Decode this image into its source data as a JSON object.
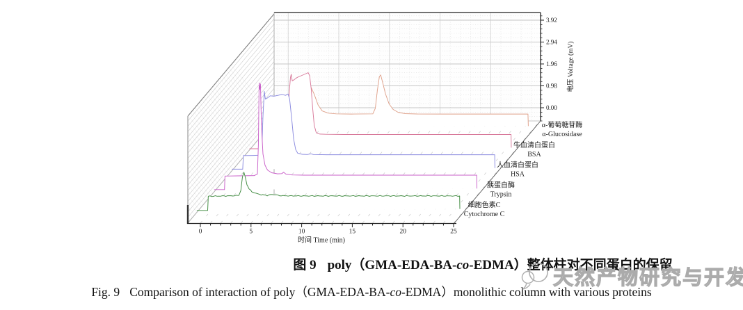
{
  "figure": {
    "caption_zh": {
      "prefix": "图 9",
      "seg1": "poly（GMA-EDA-BA-",
      "italic": "co",
      "seg2": "-EDMA）整体柱对不同蛋白的保留"
    },
    "caption_en": {
      "prefix": "Fig. 9",
      "seg1": "Comparison of interaction of poly（GMA-EDA-BA-",
      "italic": "co",
      "seg2": "-EDMA）monolithic column with various proteins"
    }
  },
  "watermark": {
    "text": "天然产物研究与开发"
  },
  "chart_data": {
    "type": "line",
    "subtype": "3d-waterfall-chromatograms",
    "title": "",
    "xlabel": "时间 Time (min)",
    "ylabel": "电压 Voltage (mV)",
    "xlim": [
      0,
      25
    ],
    "x_ticks": [
      0,
      5,
      10,
      15,
      20,
      25
    ],
    "x_minor_step": 1,
    "z_ticks": [
      "0.00",
      "0.98",
      "1.96",
      "2.94",
      "3.92"
    ],
    "grid": "dotted-minor-solid-major-on-back-wall",
    "legend_position": "right-diagonal-series-labels",
    "series": [
      {
        "name_zh": "α-葡萄糖苷酶",
        "name_en": "α-Glucosidase",
        "color": "#dfa089",
        "depth": 4,
        "main_peaks": [
          {
            "t_min": 3.75,
            "height_mV": 1.35
          },
          {
            "t_min": 10.9,
            "height_mV": 1.8
          }
        ],
        "points": [
          [
            -0.35,
            -0.55
          ],
          [
            0.7,
            -0.55
          ],
          [
            0.76,
            0.02
          ],
          [
            1.6,
            0.03
          ],
          [
            3.2,
            0.05
          ],
          [
            3.5,
            0.7
          ],
          [
            3.75,
            1.35
          ],
          [
            4.0,
            1.25
          ],
          [
            4.3,
            0.95
          ],
          [
            4.7,
            0.45
          ],
          [
            5.1,
            0.18
          ],
          [
            5.7,
            0.08
          ],
          [
            6.5,
            0.05
          ],
          [
            8.0,
            0.04
          ],
          [
            10.1,
            0.05
          ],
          [
            10.35,
            0.3
          ],
          [
            10.55,
            1.1
          ],
          [
            10.75,
            1.72
          ],
          [
            10.88,
            1.8
          ],
          [
            11.05,
            1.5
          ],
          [
            11.35,
            0.95
          ],
          [
            11.7,
            0.5
          ],
          [
            12.1,
            0.25
          ],
          [
            12.6,
            0.12
          ],
          [
            13.3,
            0.06
          ],
          [
            14.5,
            0.045
          ],
          [
            17.0,
            0.04
          ],
          [
            20.0,
            0.04
          ],
          [
            23.0,
            0.04
          ],
          [
            25.42,
            0.04
          ],
          [
            25.45,
            -0.5
          ]
        ]
      },
      {
        "name_zh": "牛血清白蛋白",
        "name_en": "BSA",
        "color": "#d8799a",
        "depth": 3,
        "main_peaks": [
          {
            "t_min": 5.45,
            "height_mV": 2.82
          }
        ],
        "points": [
          [
            -0.35,
            -0.6
          ],
          [
            0.68,
            -0.6
          ],
          [
            0.74,
            0.01
          ],
          [
            2.0,
            0.02
          ],
          [
            3.3,
            0.03
          ],
          [
            3.45,
            0.5
          ],
          [
            3.58,
            1.9
          ],
          [
            3.7,
            2.6
          ],
          [
            3.78,
            2.75
          ],
          [
            3.88,
            2.45
          ],
          [
            4.05,
            2.5
          ],
          [
            4.35,
            2.6
          ],
          [
            4.75,
            2.68
          ],
          [
            5.15,
            2.76
          ],
          [
            5.45,
            2.82
          ],
          [
            5.6,
            2.68
          ],
          [
            5.75,
            2.1
          ],
          [
            5.9,
            1.2
          ],
          [
            6.05,
            0.45
          ],
          [
            6.25,
            0.12
          ],
          [
            6.6,
            0.06
          ],
          [
            7.2,
            0.05
          ],
          [
            9.0,
            0.04
          ],
          [
            13.0,
            0.04
          ],
          [
            18.0,
            0.04
          ],
          [
            23.0,
            0.04
          ],
          [
            25.48,
            0.04
          ],
          [
            25.5,
            -0.55
          ]
        ]
      },
      {
        "name_zh": "人血清白蛋白",
        "name_en": "HSA",
        "color": "#8a8adf",
        "depth": 2,
        "main_peaks": [
          {
            "t_min": 2.85,
            "height_mV": 2.9
          }
        ],
        "points": [
          [
            -0.35,
            -0.6
          ],
          [
            0.72,
            -0.6
          ],
          [
            0.78,
            0.01
          ],
          [
            1.8,
            0.02
          ],
          [
            2.5,
            0.03
          ],
          [
            2.62,
            0.4
          ],
          [
            2.72,
            1.8
          ],
          [
            2.85,
            2.9
          ],
          [
            2.95,
            2.55
          ],
          [
            3.15,
            2.6
          ],
          [
            3.45,
            2.7
          ],
          [
            3.8,
            2.68
          ],
          [
            4.2,
            2.72
          ],
          [
            4.6,
            2.76
          ],
          [
            4.95,
            2.72
          ],
          [
            5.2,
            2.78
          ],
          [
            5.35,
            2.55
          ],
          [
            5.55,
            1.7
          ],
          [
            5.75,
            0.75
          ],
          [
            5.95,
            0.28
          ],
          [
            6.15,
            0.12
          ],
          [
            6.6,
            0.07
          ],
          [
            7.1,
            0.06
          ],
          [
            7.45,
            0.09
          ],
          [
            7.7,
            0.06
          ],
          [
            9.0,
            0.05
          ],
          [
            13.0,
            0.05
          ],
          [
            18.0,
            0.05
          ],
          [
            23.0,
            0.05
          ],
          [
            25.6,
            0.05
          ],
          [
            25.62,
            -0.55
          ]
        ]
      },
      {
        "name_zh": "胰蛋白酶",
        "name_en": "Trypsin",
        "color": "#c95fc9",
        "depth": 1,
        "main_peaks": [
          {
            "t_min": 4.07,
            "height_mV": 4.2
          }
        ],
        "points": [
          [
            -0.35,
            -0.6
          ],
          [
            0.65,
            -0.6
          ],
          [
            0.7,
            0.01
          ],
          [
            2.0,
            0.02
          ],
          [
            3.6,
            0.03
          ],
          [
            3.9,
            0.1
          ],
          [
            4.0,
            1.4
          ],
          [
            4.07,
            4.2
          ],
          [
            4.13,
            3.9
          ],
          [
            4.2,
            4.15
          ],
          [
            4.3,
            2.3
          ],
          [
            4.45,
            1.0
          ],
          [
            4.65,
            0.5
          ],
          [
            4.9,
            0.28
          ],
          [
            5.3,
            0.16
          ],
          [
            5.9,
            0.11
          ],
          [
            6.3,
            0.12
          ],
          [
            6.5,
            0.18
          ],
          [
            6.7,
            0.1
          ],
          [
            7.3,
            0.06
          ],
          [
            8.5,
            0.05
          ],
          [
            11.0,
            0.05
          ],
          [
            15.0,
            0.05
          ],
          [
            20.0,
            0.05
          ],
          [
            24.0,
            0.05
          ],
          [
            25.55,
            0.05
          ],
          [
            25.57,
            -0.55
          ]
        ]
      },
      {
        "name_zh": "细胞色素C",
        "name_en": "Cytochrome C",
        "color": "#3f8a3f",
        "depth": 0,
        "noise": true,
        "main_peaks": [
          {
            "t_min": 4.3,
            "height_mV": 1.1
          }
        ],
        "points": [
          [
            -0.35,
            -0.62
          ],
          [
            0.72,
            -0.62
          ],
          [
            0.78,
            0.02
          ],
          [
            2.0,
            0.03
          ],
          [
            3.2,
            0.04
          ],
          [
            3.8,
            0.06
          ],
          [
            4.0,
            0.3
          ],
          [
            4.15,
            0.85
          ],
          [
            4.3,
            1.1
          ],
          [
            4.45,
            0.85
          ],
          [
            4.6,
            0.55
          ],
          [
            4.8,
            0.35
          ],
          [
            5.1,
            0.22
          ],
          [
            5.5,
            0.15
          ],
          [
            6.0,
            0.09
          ],
          [
            6.6,
            0.06
          ],
          [
            7.1,
            0.1
          ],
          [
            7.4,
            0.09
          ],
          [
            7.8,
            0.05
          ],
          [
            8.5,
            0.04
          ],
          [
            10.0,
            0.035
          ],
          [
            13.0,
            0.035
          ],
          [
            16.0,
            0.035
          ],
          [
            20.0,
            0.035
          ],
          [
            24.0,
            0.035
          ],
          [
            25.6,
            0.035
          ],
          [
            25.62,
            -0.55
          ]
        ]
      }
    ]
  }
}
